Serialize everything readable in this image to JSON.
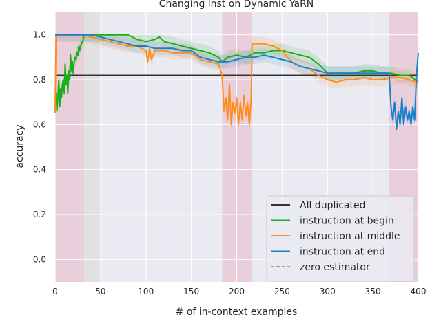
{
  "chart_data": {
    "type": "line",
    "title": "Changing inst on Dynamic YaRN",
    "xlabel": "# of in-context examples",
    "ylabel": "accuracy",
    "xlim": [
      0,
      400
    ],
    "ylim": [
      -0.1,
      1.1
    ],
    "x_ticks": [
      "0",
      "50",
      "100",
      "150",
      "200",
      "250",
      "300",
      "350",
      "400"
    ],
    "y_ticks": [
      "0.0",
      "0.2",
      "0.4",
      "0.6",
      "0.8",
      "1.0"
    ],
    "grid": true,
    "legend_position": "lower-right",
    "shaded_regions": [
      {
        "x0": 0,
        "x1": 32,
        "color": "#e8b8c8"
      },
      {
        "x0": 32,
        "x1": 50,
        "color": "#d9d9d9"
      },
      {
        "x0": 184,
        "x1": 217,
        "color": "#e8b8c8"
      },
      {
        "x0": 368,
        "x1": 400,
        "color": "#e8b8c8"
      }
    ],
    "series": [
      {
        "name": "All duplicated",
        "color": "#333333",
        "dash": false,
        "x": [
          0,
          400
        ],
        "y": [
          0.82,
          0.82
        ]
      },
      {
        "name": "instruction at begin",
        "color": "#1aaf1a",
        "dash": false,
        "x": [
          0,
          1,
          2,
          3,
          4,
          5,
          6,
          7,
          8,
          9,
          10,
          11,
          12,
          13,
          14,
          15,
          16,
          17,
          18,
          19,
          20,
          21,
          22,
          23,
          24,
          25,
          26,
          27,
          28,
          29,
          30,
          31,
          32,
          35,
          40,
          50,
          60,
          70,
          80,
          90,
          100,
          110,
          115,
          120,
          130,
          140,
          150,
          160,
          170,
          180,
          184,
          190,
          200,
          210,
          220,
          230,
          240,
          250,
          260,
          270,
          280,
          290,
          300,
          310,
          320,
          330,
          340,
          350,
          360,
          370,
          380,
          390,
          400
        ],
        "y": [
          0.7,
          0.74,
          0.66,
          0.72,
          0.8,
          0.68,
          0.76,
          0.72,
          0.78,
          0.8,
          0.74,
          0.87,
          0.78,
          0.82,
          0.74,
          0.84,
          0.8,
          0.91,
          0.84,
          0.88,
          0.83,
          0.88,
          0.9,
          0.89,
          0.92,
          0.91,
          0.95,
          0.93,
          0.95,
          0.96,
          0.97,
          0.98,
          1.0,
          1.0,
          1.0,
          1.0,
          1.0,
          1.0,
          1.0,
          0.98,
          0.97,
          0.98,
          0.99,
          0.97,
          0.96,
          0.95,
          0.94,
          0.93,
          0.92,
          0.9,
          0.88,
          0.9,
          0.91,
          0.9,
          0.92,
          0.92,
          0.93,
          0.93,
          0.92,
          0.91,
          0.9,
          0.87,
          0.83,
          0.83,
          0.83,
          0.83,
          0.84,
          0.84,
          0.83,
          0.83,
          0.82,
          0.82,
          0.79
        ]
      },
      {
        "name": "instruction at middle",
        "color": "#ff8c1a",
        "dash": false,
        "x": [
          0,
          1,
          2,
          5,
          10,
          20,
          30,
          40,
          50,
          60,
          70,
          80,
          90,
          100,
          102,
          104,
          106,
          110,
          120,
          130,
          140,
          150,
          160,
          170,
          180,
          184,
          186,
          188,
          190,
          192,
          194,
          196,
          198,
          200,
          202,
          204,
          206,
          208,
          210,
          212,
          214,
          216,
          217,
          220,
          230,
          240,
          250,
          260,
          270,
          280,
          290,
          300,
          310,
          320,
          330,
          340,
          350,
          360,
          370,
          380,
          390,
          400
        ],
        "y": [
          0.65,
          1.0,
          1.0,
          1.0,
          1.0,
          1.0,
          1.0,
          0.99,
          0.98,
          0.97,
          0.96,
          0.95,
          0.95,
          0.93,
          0.88,
          0.94,
          0.89,
          0.93,
          0.93,
          0.92,
          0.92,
          0.92,
          0.89,
          0.88,
          0.87,
          0.82,
          0.66,
          0.72,
          0.62,
          0.78,
          0.6,
          0.7,
          0.65,
          0.72,
          0.6,
          0.7,
          0.62,
          0.73,
          0.64,
          0.7,
          0.6,
          0.72,
          0.96,
          0.96,
          0.96,
          0.95,
          0.93,
          0.88,
          0.86,
          0.85,
          0.82,
          0.8,
          0.79,
          0.8,
          0.8,
          0.81,
          0.8,
          0.8,
          0.81,
          0.81,
          0.8,
          0.79
        ]
      },
      {
        "name": "instruction at end",
        "color": "#1a80cc",
        "dash": false,
        "x": [
          0,
          10,
          20,
          30,
          40,
          50,
          60,
          70,
          80,
          90,
          100,
          110,
          120,
          130,
          140,
          150,
          160,
          170,
          180,
          190,
          200,
          210,
          220,
          230,
          240,
          250,
          260,
          270,
          280,
          290,
          300,
          310,
          320,
          330,
          340,
          350,
          360,
          366,
          368,
          370,
          372,
          374,
          376,
          378,
          380,
          382,
          384,
          386,
          388,
          390,
          392,
          394,
          396,
          398,
          400
        ],
        "y": [
          1.0,
          1.0,
          1.0,
          1.0,
          1.0,
          0.99,
          0.98,
          0.97,
          0.96,
          0.95,
          0.95,
          0.94,
          0.94,
          0.94,
          0.93,
          0.93,
          0.9,
          0.89,
          0.88,
          0.88,
          0.89,
          0.9,
          0.9,
          0.91,
          0.9,
          0.89,
          0.88,
          0.86,
          0.85,
          0.84,
          0.83,
          0.83,
          0.83,
          0.83,
          0.83,
          0.83,
          0.83,
          0.83,
          0.82,
          0.68,
          0.62,
          0.7,
          0.58,
          0.66,
          0.6,
          0.72,
          0.6,
          0.68,
          0.62,
          0.66,
          0.6,
          0.68,
          0.62,
          0.82,
          0.92
        ]
      },
      {
        "name": "zero estimator",
        "color": "#9e9e9e",
        "dash": true,
        "x": [],
        "y": []
      }
    ]
  }
}
